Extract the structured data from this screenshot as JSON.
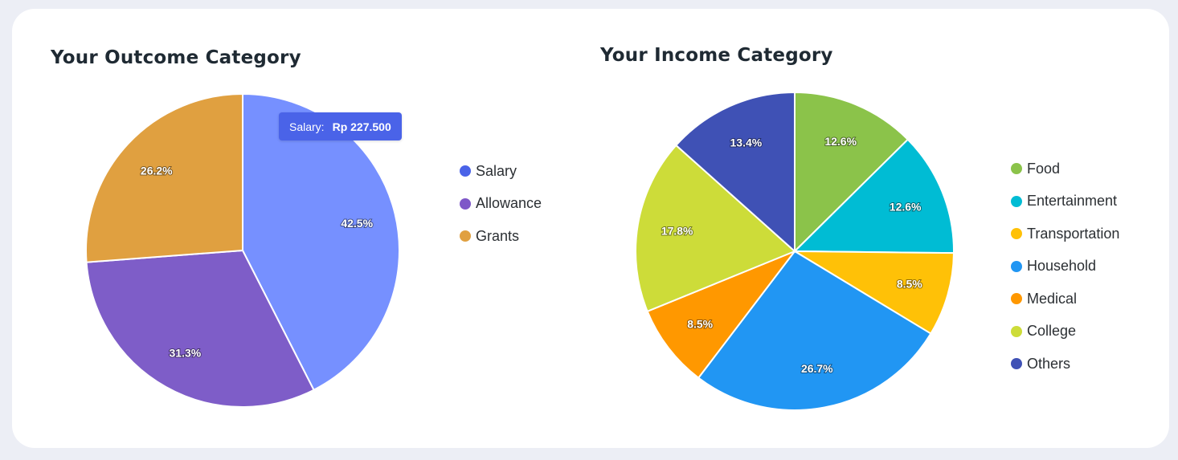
{
  "chart_data": [
    {
      "type": "pie",
      "title": "Your Outcome Category",
      "categories": [
        "Salary",
        "Allowance",
        "Grants"
      ],
      "values": [
        42.5,
        31.3,
        26.2
      ],
      "labels": [
        "42.5%",
        "31.3%",
        "26.2%"
      ],
      "legend_colors": [
        "#4a63e8",
        "#7e57c8",
        "#e0a040"
      ],
      "slice_colors": [
        "#7690ff",
        "#7e5dc8",
        "#e0a040"
      ],
      "legend_position": "right",
      "tooltip": {
        "name": "Salary:",
        "value": "Rp 227.500"
      }
    },
    {
      "type": "pie",
      "title": "Your Income Category",
      "categories": [
        "Food",
        "Entertainment",
        "Transportation",
        "Household",
        "Medical",
        "College",
        "Others"
      ],
      "values": [
        12.6,
        12.6,
        8.5,
        26.7,
        8.5,
        17.8,
        13.4
      ],
      "labels": [
        "12.6%",
        "12.6%",
        "8.5%",
        "26.7%",
        "8.5%",
        "17.8%",
        "13.4%"
      ],
      "legend_colors": [
        "#8bc34a",
        "#00bcd4",
        "#ffc107",
        "#2196f3",
        "#ff9800",
        "#cddc39",
        "#3f51b5"
      ],
      "slice_colors": [
        "#8bc34a",
        "#00bcd4",
        "#ffc107",
        "#2196f3",
        "#ff9800",
        "#cddc39",
        "#3f51b5"
      ],
      "legend_position": "right"
    }
  ]
}
